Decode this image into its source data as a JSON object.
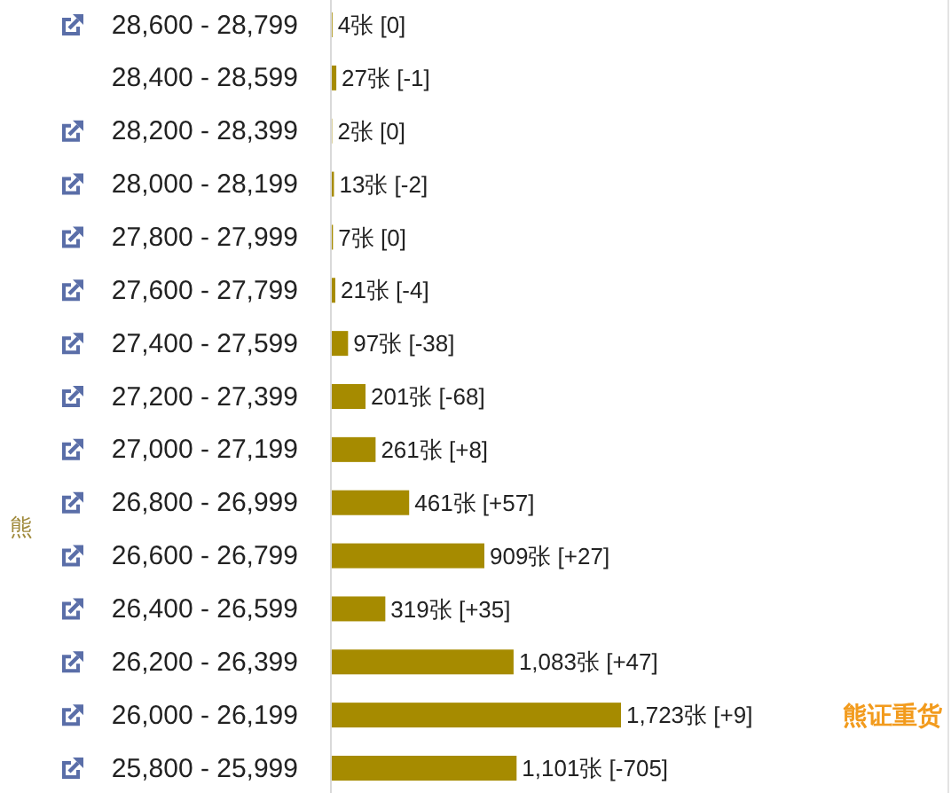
{
  "chart_data": {
    "type": "bar",
    "orientation": "horizontal",
    "ylabel": "熊",
    "categories": [
      "28,600 - 28,799",
      "28,400 - 28,599",
      "28,200 - 28,399",
      "28,000 - 28,199",
      "27,800 - 27,999",
      "27,600 - 27,799",
      "27,400 - 27,599",
      "27,200 - 27,399",
      "27,000 - 27,199",
      "26,800 - 26,999",
      "26,600 - 26,799",
      "26,400 - 26,599",
      "26,200 - 26,399",
      "26,000 - 26,199",
      "25,800 - 25,999"
    ],
    "values": [
      4,
      27,
      2,
      13,
      7,
      21,
      97,
      201,
      261,
      461,
      909,
      319,
      1083,
      1723,
      1101
    ],
    "color": "#a68b00",
    "value_labels": [
      "4张 [0]",
      "27张 [-1]",
      "2张 [0]",
      "13张 [-2]",
      "7张 [0]",
      "21张 [-4]",
      "97张 [-38]",
      "201张 [-68]",
      "261张 [+8]",
      "461张 [+57]",
      "909张 [+27]",
      "319张 [+35]",
      "1,083张 [+47]",
      "1,723张 [+9]",
      "1,101张 [-705]"
    ],
    "annotations": [
      "熊证重货"
    ]
  }
}
